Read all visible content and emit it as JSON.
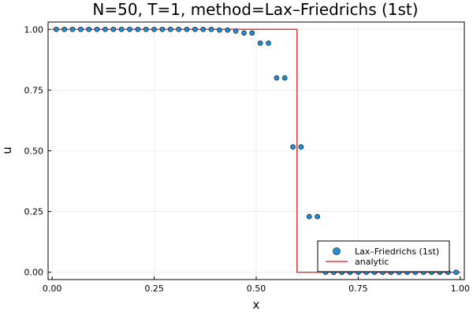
{
  "chart_data": {
    "type": "scatter",
    "title": "N=50, T=1, method=Lax–Friedrichs (1st)",
    "xlabel": "x",
    "ylabel": "u",
    "xlim": [
      -0.01,
      1.01
    ],
    "ylim": [
      -0.03,
      1.03
    ],
    "xticks": [
      0.0,
      0.25,
      0.5,
      0.75,
      1.0
    ],
    "xtick_labels": [
      "0.00",
      "0.25",
      "0.50",
      "0.75",
      "1.00"
    ],
    "yticks": [
      0.0,
      0.25,
      0.5,
      0.75,
      1.0
    ],
    "ytick_labels": [
      "0.00",
      "0.25",
      "0.50",
      "0.75",
      "1.00"
    ],
    "grid": true,
    "legend_position": "bottom-right",
    "series": [
      {
        "name": "Lax–Friedrichs (1st)",
        "kind": "scatter",
        "color": "#1f8fd8",
        "x": [
          0.01,
          0.03,
          0.05,
          0.07,
          0.09,
          0.11,
          0.13,
          0.15,
          0.17,
          0.19,
          0.21,
          0.23,
          0.25,
          0.27,
          0.29,
          0.31,
          0.33,
          0.35,
          0.37,
          0.39,
          0.41,
          0.43,
          0.45,
          0.47,
          0.49,
          0.51,
          0.53,
          0.55,
          0.57,
          0.59,
          0.61,
          0.63,
          0.65,
          0.67,
          0.69,
          0.71,
          0.73,
          0.75,
          0.77,
          0.79,
          0.81,
          0.83,
          0.85,
          0.87,
          0.89,
          0.91,
          0.93,
          0.95,
          0.97,
          0.99
        ],
        "y": [
          1.0,
          1.0,
          1.0,
          1.0,
          1.0,
          1.0,
          1.0,
          1.0,
          1.0,
          1.0,
          1.0,
          1.0,
          1.0,
          1.0,
          1.0,
          1.0,
          1.0,
          1.0,
          1.0,
          1.0,
          0.997,
          0.997,
          0.993,
          0.985,
          0.985,
          0.943,
          0.943,
          0.8,
          0.8,
          0.516,
          0.516,
          0.229,
          0.229,
          0.0,
          0.0,
          0.0,
          0.0,
          0.0,
          0.0,
          0.0,
          0.0,
          0.0,
          0.0,
          0.0,
          0.0,
          0.0,
          0.0,
          0.0,
          0.0,
          0.0
        ]
      },
      {
        "name": "analytic",
        "kind": "line",
        "color": "#e23b3b",
        "x": [
          0.0,
          0.6,
          0.6,
          1.0
        ],
        "y": [
          1.0,
          1.0,
          0.0,
          0.0
        ]
      }
    ]
  }
}
